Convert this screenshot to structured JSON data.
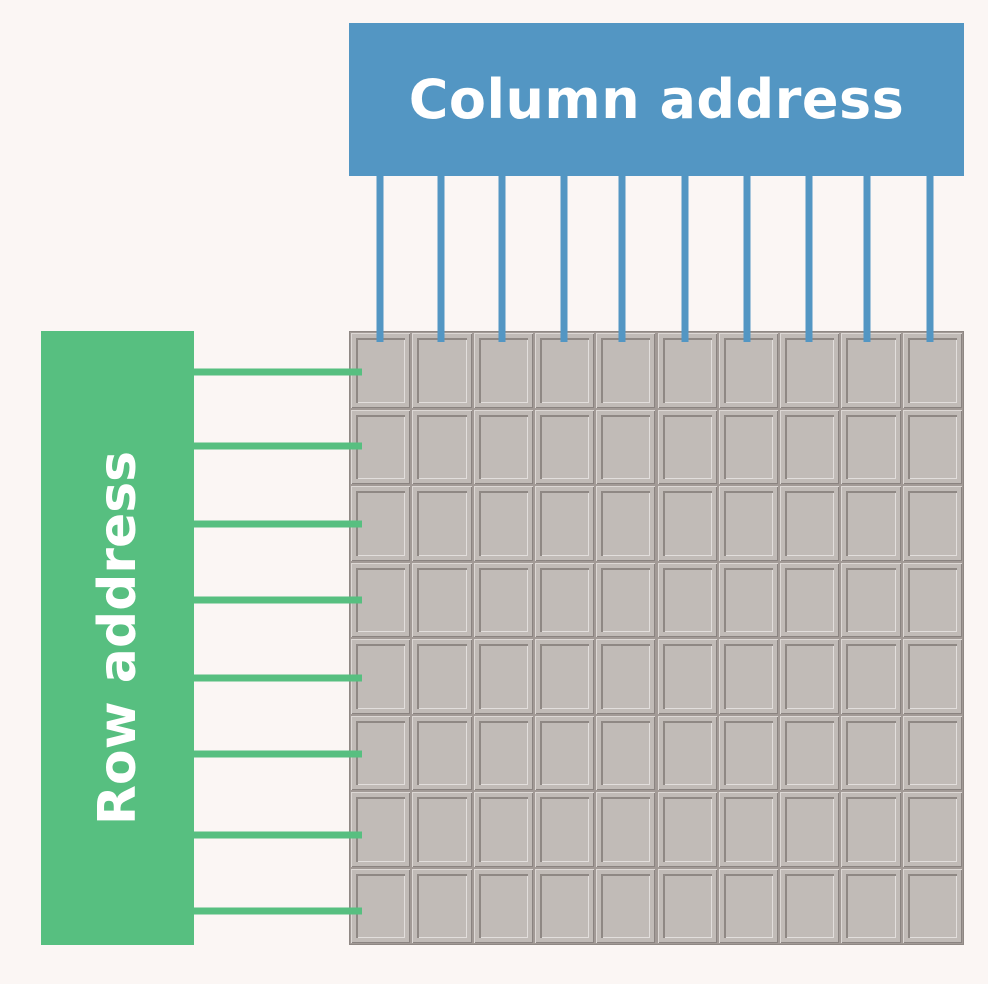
{
  "column_block": {
    "label": "Column address",
    "color": "#5396c3",
    "line_count": 10
  },
  "row_block": {
    "label": "Row address",
    "color": "#57bf80",
    "line_count": 8
  },
  "cell_grid": {
    "columns": 10,
    "rows": 8,
    "cell_color": "#c1bbb7"
  }
}
